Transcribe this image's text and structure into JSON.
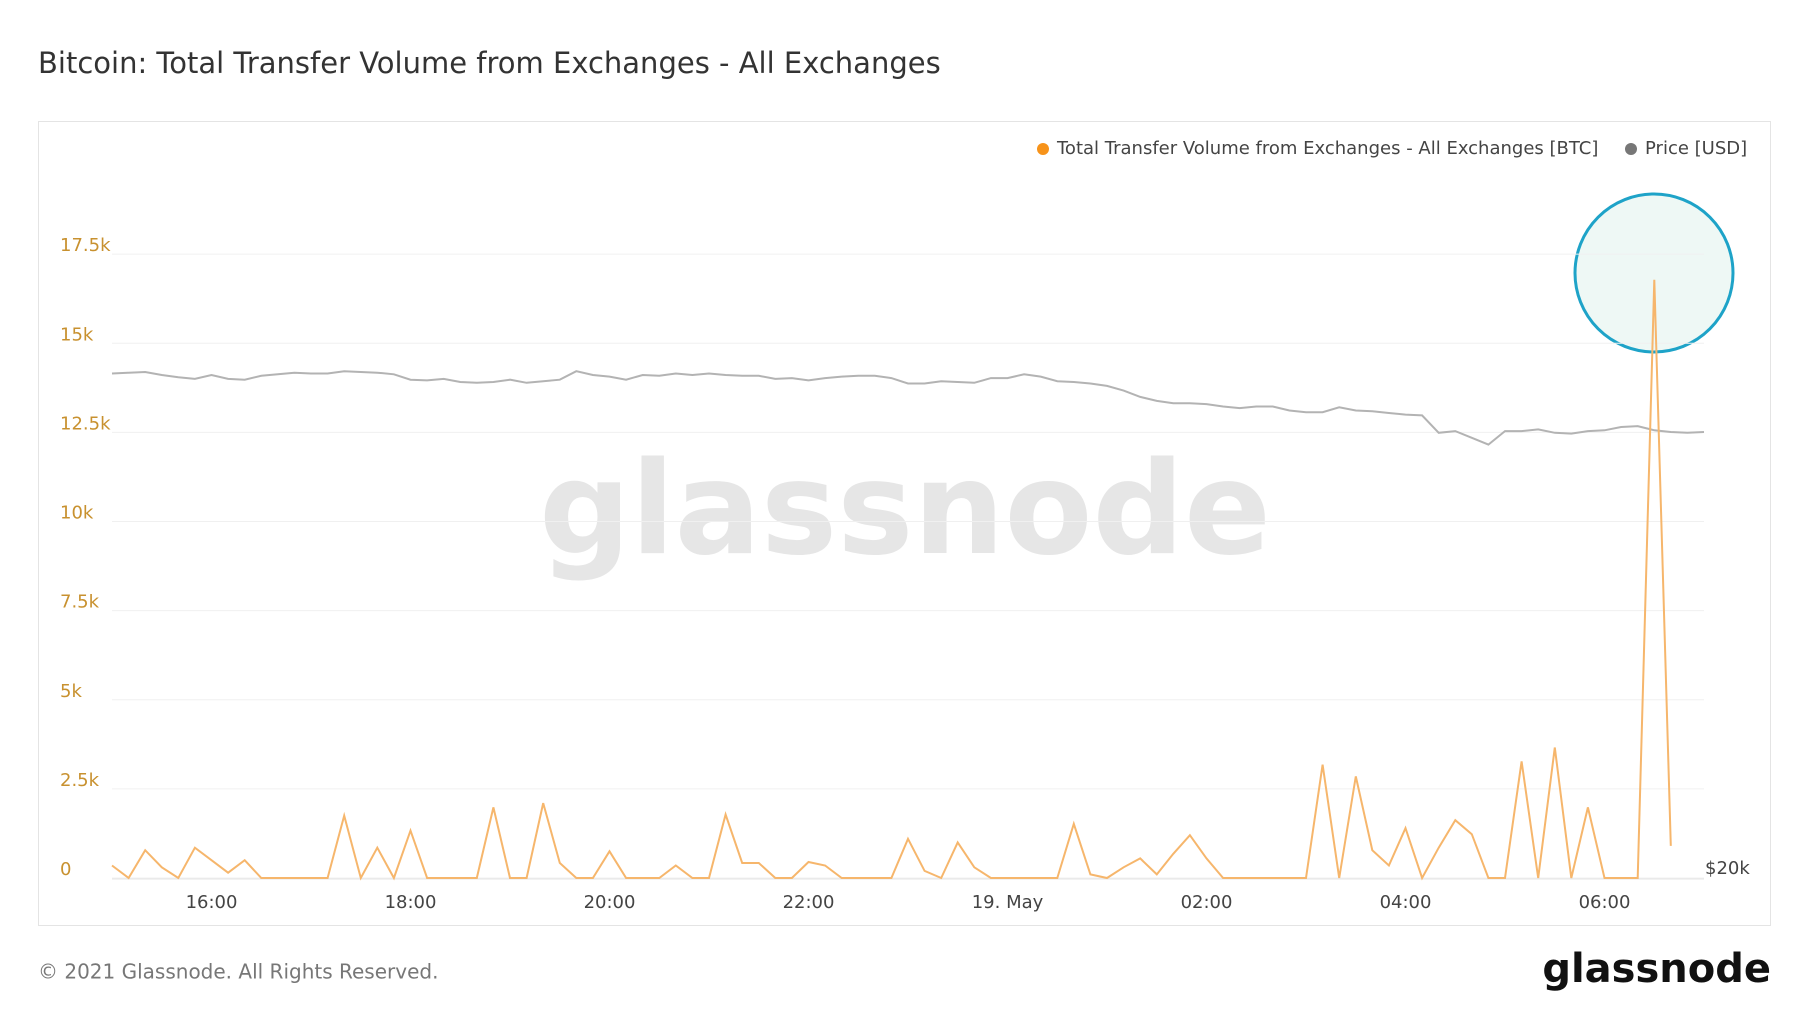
{
  "chart_data": {
    "type": "line",
    "title": "Bitcoin: Total Transfer Volume from Exchanges - All Exchanges",
    "categories": [
      null,
      null,
      null,
      null,
      null,
      null,
      "16:00",
      null,
      null,
      null,
      null,
      null,
      null,
      null,
      null,
      null,
      null,
      null,
      "18:00",
      null,
      null,
      null,
      null,
      null,
      null,
      null,
      null,
      null,
      null,
      null,
      "20:00",
      null,
      null,
      null,
      null,
      null,
      null,
      null,
      null,
      null,
      null,
      null,
      "22:00",
      null,
      null,
      null,
      null,
      null,
      null,
      null,
      null,
      null,
      null,
      null,
      "19. May",
      null,
      null,
      null,
      null,
      null,
      null,
      null,
      null,
      null,
      null,
      null,
      "02:00",
      null,
      null,
      null,
      null,
      null,
      null,
      null,
      null,
      null,
      null,
      null,
      "04:00",
      null,
      null,
      null,
      null,
      null,
      null,
      null,
      null,
      null,
      null,
      null,
      "06:00",
      null,
      null,
      null,
      null,
      null,
      null
    ],
    "series": [
      {
        "name": "Total Transfer Volume from Exchanges - All Exchanges [BTC]",
        "color": "#f7931a",
        "line_color": "#f6b66c",
        "values": [
          350,
          0,
          780,
          300,
          0,
          850,
          500,
          150,
          500,
          0,
          0,
          0,
          0,
          0,
          1750,
          0,
          850,
          0,
          1330,
          0,
          0,
          0,
          0,
          1980,
          0,
          0,
          2100,
          420,
          0,
          0,
          750,
          0,
          0,
          0,
          350,
          0,
          0,
          1780,
          420,
          420,
          0,
          0,
          450,
          350,
          0,
          0,
          0,
          0,
          1100,
          200,
          0,
          1000,
          300,
          0,
          0,
          0,
          0,
          0,
          1520,
          100,
          0,
          300,
          550,
          100,
          680,
          1200,
          550,
          0,
          0,
          0,
          0,
          0,
          0,
          3180,
          0,
          2850,
          780,
          350,
          1400,
          0,
          850,
          1620,
          1230,
          0,
          0,
          3270,
          0,
          3660,
          0,
          1980,
          0,
          0,
          0,
          16780,
          900,
          null,
          null
        ]
      },
      {
        "name": "Price [USD]",
        "color": "#777777",
        "line_color": "#b3b3b3",
        "axis": "y2",
        "values": [
          43000,
          43050,
          43100,
          42900,
          42750,
          42650,
          42900,
          42650,
          42600,
          42850,
          42950,
          43050,
          43000,
          43000,
          43150,
          43100,
          43050,
          42950,
          42600,
          42550,
          42650,
          42450,
          42400,
          42450,
          42600,
          42400,
          42500,
          42600,
          43150,
          42900,
          42800,
          42600,
          42900,
          42850,
          43000,
          42900,
          43000,
          42900,
          42850,
          42850,
          42650,
          42700,
          42550,
          42700,
          42800,
          42850,
          42850,
          42700,
          42350,
          42350,
          42500,
          42450,
          42400,
          42700,
          42700,
          42950,
          42800,
          42500,
          42450,
          42350,
          42200,
          41900,
          41500,
          41250,
          41100,
          41100,
          41050,
          40900,
          40800,
          40900,
          40900,
          40650,
          40550,
          40550,
          40850,
          40650,
          40600,
          40500,
          40400,
          40350,
          39300,
          39400,
          39000,
          38600,
          39400,
          39400,
          39500,
          39300,
          39250,
          39400,
          39450,
          39650,
          39700,
          39450,
          39350,
          39300,
          39350
        ]
      }
    ],
    "ylim": [
      0,
      20000
    ],
    "yticks": [
      0,
      {
        "value": 2500,
        "label": "2.5k"
      },
      {
        "value": 5000,
        "label": "5k"
      },
      {
        "value": 7500,
        "label": "7.5k"
      },
      {
        "value": 10000,
        "label": "10k"
      },
      {
        "value": 12500,
        "label": "12.5k"
      },
      {
        "value": 15000,
        "label": "15k"
      },
      {
        "value": 17500,
        "label": "17.5k"
      }
    ],
    "y2lim": [
      20000,
      59000
    ],
    "y2ticks": [
      {
        "value": 20000,
        "label": "$20k"
      }
    ],
    "y2_scale": "log",
    "grid": true,
    "legend": "top-right",
    "watermark": "glassnode",
    "footer": "© 2021 Glassnode. All Rights Reserved.",
    "logo": "glassnode"
  }
}
